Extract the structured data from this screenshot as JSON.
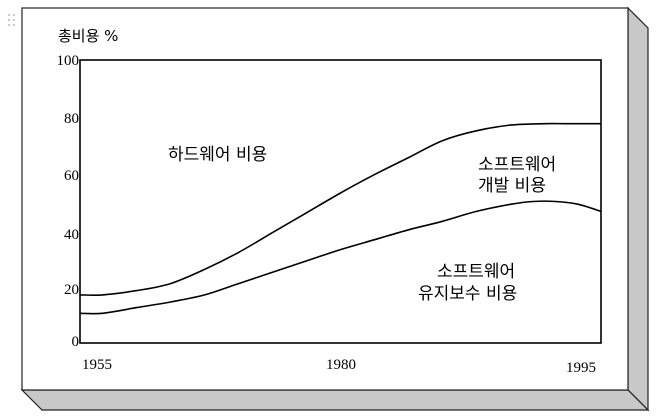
{
  "chart_data": {
    "type": "area",
    "ylabel": "총비용 %",
    "y_ticks": [
      "0",
      "20",
      "40",
      "60",
      "80",
      "100"
    ],
    "ylim": [
      0,
      100
    ],
    "x_ticks": [
      "1955",
      "1980",
      "1995"
    ],
    "xlim": [
      1953,
      1999
    ],
    "grid": false,
    "legend": "none",
    "boundaries": [
      {
        "name": "hardware-software-boundary",
        "x": [
          1953,
          1955,
          1958,
          1961,
          1964,
          1967,
          1970,
          1973,
          1976,
          1979,
          1982,
          1985,
          1988,
          1991,
          1994,
          1996,
          1999
        ],
        "y": [
          17,
          17,
          18.5,
          21,
          26,
          32,
          39,
          46,
          53,
          59.5,
          65.5,
          71.5,
          75,
          77,
          77.5,
          77.5,
          77.5
        ]
      },
      {
        "name": "development-maintenance-boundary",
        "x": [
          1953,
          1955,
          1958,
          1961,
          1964,
          1967,
          1970,
          1973,
          1976,
          1979,
          1982,
          1985,
          1988,
          1991,
          1993,
          1995,
          1997,
          1999
        ],
        "y": [
          10.5,
          10.5,
          12.5,
          14.5,
          17,
          21,
          25,
          29,
          33,
          36.5,
          40,
          43,
          46.5,
          49,
          50,
          50,
          49,
          46.5
        ]
      }
    ],
    "regions": [
      {
        "name": "hardware",
        "label": "하드웨어 비용"
      },
      {
        "name": "software-dev",
        "label_lines": [
          "소프트웨어",
          "개발 비용"
        ]
      },
      {
        "name": "software-maint",
        "label_lines": [
          "소프트웨어",
          "유지보수 비용"
        ]
      }
    ]
  },
  "colors": {
    "line": "#000000",
    "frame_side": "#c8c8c8",
    "frame_border": "#222222"
  }
}
